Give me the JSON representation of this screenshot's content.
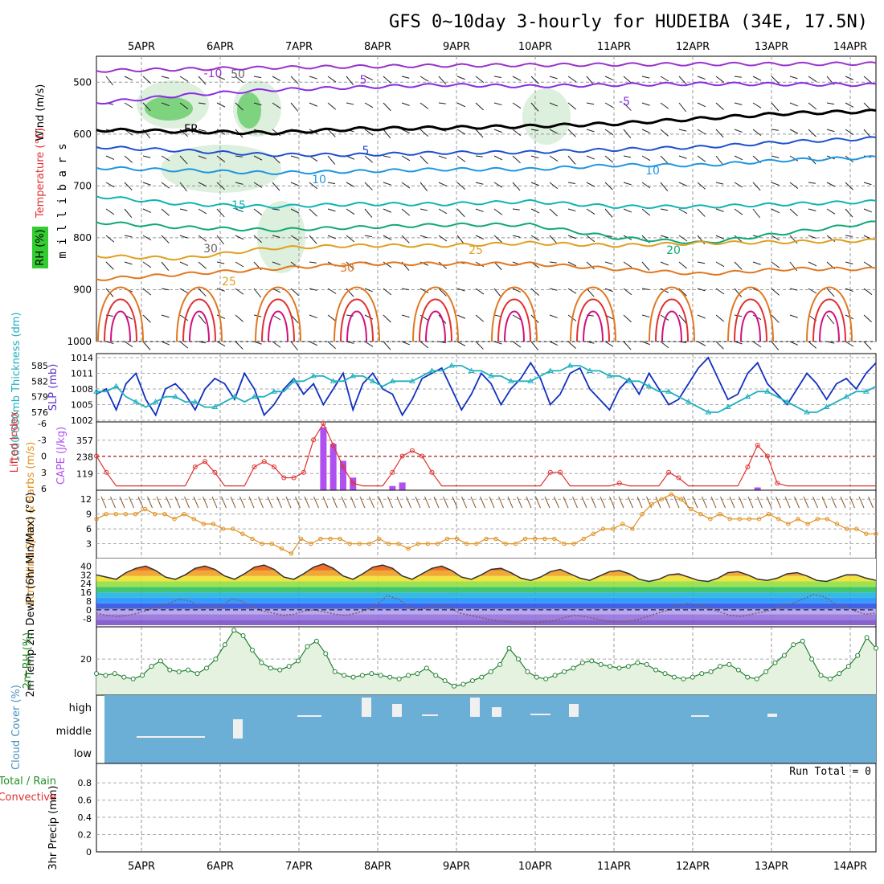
{
  "title": "GFS 0~10day 3-hourly for HUDEIBA (34E, 17.5N)",
  "dates": [
    "5APR",
    "6APR",
    "7APR",
    "8APR",
    "9APR",
    "10APR",
    "11APR",
    "12APR",
    "13APR",
    "14APR"
  ],
  "chart_data": [
    {
      "type": "line",
      "panel": "upper-air",
      "ylabel": "millibars",
      "ylabel_left": "Wind (m/s)",
      "ylabel_temp": "Temperature (°C)",
      "ylabel_rh": "RH (%)",
      "yticks": [
        500,
        600,
        700,
        800,
        900,
        1000
      ],
      "ylim": [
        450,
        1000
      ],
      "contour_labels": [
        "-10",
        "5",
        "FR",
        "5",
        "10",
        "15",
        "25",
        "30",
        "20",
        "-5",
        "10",
        "50",
        "30",
        "25"
      ],
      "isotherms": [
        {
          "name": "-10",
          "color": "#9a32cd",
          "level": [
            478,
            475,
            472,
            470,
            468,
            467,
            466,
            465,
            465,
            464
          ]
        },
        {
          "name": "-5",
          "color": "#8a2be2",
          "level": [
            540,
            525,
            515,
            510,
            505,
            508,
            505,
            503,
            504,
            505
          ]
        },
        {
          "name": "0",
          "color": "#000000",
          "level": [
            592,
            595,
            598,
            590,
            588,
            585,
            580,
            570,
            560,
            556
          ]
        },
        {
          "name": "5",
          "color": "#1e50d0",
          "level": [
            625,
            632,
            640,
            640,
            636,
            635,
            630,
            625,
            615,
            608
          ]
        },
        {
          "name": "10",
          "color": "#1e96e0",
          "level": [
            665,
            670,
            675,
            672,
            668,
            668,
            660,
            660,
            650,
            645
          ]
        },
        {
          "name": "15",
          "color": "#10b4b4",
          "level": [
            720,
            735,
            740,
            735,
            735,
            730,
            740,
            740,
            735,
            730
          ]
        },
        {
          "name": "20",
          "color": "#10a878",
          "level": [
            770,
            780,
            785,
            780,
            775,
            775,
            800,
            810,
            790,
            770
          ]
        },
        {
          "name": "25",
          "color": "#e0a020",
          "level": [
            835,
            840,
            820,
            815,
            815,
            810,
            815,
            810,
            808,
            805
          ]
        },
        {
          "name": "30",
          "color": "#e07820",
          "level": [
            880,
            870,
            860,
            850,
            850,
            850,
            860,
            870,
            860,
            860
          ]
        }
      ]
    },
    {
      "type": "line",
      "panel": "slp-thickness",
      "ylabel_left": "1000-500mb Thickness (dm)",
      "ylabel_right": "SLP (mb)",
      "yticks_left": [
        576,
        579,
        582,
        585
      ],
      "yticks_right": [
        1002,
        1005,
        1008,
        1011,
        1014
      ],
      "series": [
        {
          "name": "SLP (mb)",
          "color": "#1030c0",
          "values": [
            1007,
            1008,
            1004,
            1009,
            1011,
            1006,
            1003,
            1008,
            1009,
            1007,
            1004,
            1008,
            1010,
            1009,
            1006,
            1011,
            1008,
            1003,
            1005,
            1008,
            1010,
            1007,
            1009,
            1005,
            1008,
            1011,
            1004,
            1009,
            1011,
            1008,
            1007,
            1003,
            1006,
            1010,
            1011,
            1012,
            1008,
            1004,
            1007,
            1011,
            1009,
            1005,
            1008,
            1010,
            1013,
            1010,
            1005,
            1007,
            1011,
            1012,
            1008,
            1006,
            1004,
            1008,
            1010,
            1007,
            1011,
            1008,
            1005,
            1006,
            1009,
            1012,
            1014,
            1010,
            1006,
            1007,
            1011,
            1013,
            1009,
            1007,
            1005,
            1008,
            1011,
            1009,
            1006,
            1009,
            1010,
            1008,
            1011,
            1013
          ]
        },
        {
          "name": "1000-500mb Thickness (dm)",
          "color": "#20b0c0",
          "values": [
            580,
            580,
            581,
            579,
            578,
            577,
            578,
            579,
            579,
            578,
            578,
            577,
            577,
            578,
            579,
            578,
            579,
            579,
            580,
            580,
            582,
            582,
            583,
            583,
            582,
            582,
            583,
            583,
            582,
            581,
            582,
            582,
            582,
            583,
            584,
            584,
            585,
            585,
            584,
            584,
            583,
            583,
            582,
            582,
            582,
            583,
            584,
            584,
            585,
            585,
            584,
            584,
            583,
            583,
            582,
            582,
            581,
            580,
            580,
            579,
            578,
            577,
            576,
            576,
            577,
            578,
            579,
            580,
            580,
            579,
            578,
            577,
            576,
            576,
            577,
            578,
            579,
            580,
            580,
            581
          ]
        }
      ]
    },
    {
      "type": "bar",
      "panel": "lifted-cape",
      "ylabel_left": "Lifted Index",
      "ylabel_right": "CAPE (J/kg)",
      "yticks_left": [
        "-6",
        "-3",
        "0",
        "3",
        "6"
      ],
      "yticks_right": [
        119,
        238,
        357
      ],
      "series": [
        {
          "name": "Lifted Index",
          "color": "#e03030",
          "values": [
            0,
            3,
            6,
            6,
            6,
            6,
            6,
            6,
            6,
            6,
            2,
            1,
            3,
            6,
            6,
            6,
            2,
            1,
            2,
            4,
            4,
            3,
            -3,
            -6,
            -2,
            2,
            5,
            6,
            6,
            6,
            3,
            0,
            -1,
            0,
            3,
            6,
            6,
            6,
            6,
            6,
            6,
            6,
            6,
            6,
            6,
            6,
            3,
            3,
            6,
            6,
            6,
            6,
            6,
            5,
            6,
            6,
            6,
            6,
            3,
            4,
            6,
            6,
            6,
            6,
            6,
            6,
            2,
            -2,
            0,
            5,
            6,
            6,
            6,
            6,
            6,
            6,
            6,
            6,
            6,
            6
          ]
        },
        {
          "name": "CAPE (J/kg)",
          "color": "#b050f0",
          "values": [
            0,
            0,
            0,
            0,
            0,
            0,
            0,
            0,
            0,
            0,
            0,
            0,
            0,
            0,
            0,
            0,
            0,
            0,
            0,
            0,
            0,
            0,
            0,
            450,
            330,
            210,
            90,
            0,
            0,
            0,
            30,
            55,
            0,
            0,
            0,
            0,
            0,
            0,
            0,
            0,
            0,
            0,
            0,
            0,
            0,
            0,
            0,
            0,
            0,
            0,
            0,
            0,
            0,
            0,
            0,
            0,
            0,
            0,
            0,
            0,
            0,
            0,
            0,
            0,
            0,
            0,
            0,
            20,
            0,
            0,
            0,
            0,
            0,
            0,
            0,
            0,
            0,
            0,
            0,
            0
          ]
        }
      ]
    },
    {
      "type": "line",
      "panel": "10m-wind",
      "ylabel_left": "10m Wind Speed & Barbs (m/s)",
      "yticks": [
        3,
        6,
        9,
        12
      ],
      "series": [
        {
          "name": "10m Wind Speed",
          "color": "#e09020",
          "values": [
            8,
            9,
            9,
            9,
            9,
            10,
            9,
            9,
            8,
            9,
            8,
            7,
            7,
            6,
            6,
            5,
            4,
            3,
            3,
            2,
            1,
            4,
            3,
            4,
            4,
            4,
            3,
            3,
            3,
            4,
            3,
            3,
            2,
            3,
            3,
            3,
            4,
            4,
            3,
            3,
            4,
            4,
            3,
            3,
            4,
            4,
            4,
            4,
            3,
            3,
            4,
            5,
            6,
            6,
            7,
            6,
            9,
            11,
            12,
            13,
            12,
            10,
            9,
            8,
            9,
            8,
            8,
            8,
            8,
            9,
            8,
            7,
            8,
            7,
            8,
            8,
            7,
            6,
            6,
            5,
            5
          ]
        }
      ]
    },
    {
      "type": "area",
      "panel": "2m-temp",
      "ylabel_left": "2m Temp 2m DewPt (6hr Min/Max) (°C)",
      "yticks": [
        -8,
        0,
        8,
        16,
        24,
        32,
        40
      ],
      "series": [
        {
          "name": "2m Temp",
          "color": "#303030",
          "values": [
            32,
            30,
            28,
            34,
            38,
            40,
            36,
            30,
            28,
            32,
            38,
            40,
            37,
            31,
            28,
            33,
            39,
            41,
            37,
            30,
            28,
            33,
            39,
            42,
            38,
            31,
            28,
            33,
            39,
            41,
            38,
            31,
            28,
            33,
            38,
            40,
            36,
            30,
            28,
            32,
            37,
            38,
            34,
            29,
            27,
            30,
            35,
            37,
            33,
            29,
            27,
            31,
            35,
            36,
            33,
            28,
            26,
            28,
            32,
            33,
            30,
            27,
            26,
            29,
            34,
            35,
            32,
            28,
            27,
            29,
            33,
            34,
            31,
            27,
            26,
            29,
            32,
            32,
            29,
            27
          ]
        },
        {
          "name": "2m DewPt",
          "color": "#806060",
          "values": [
            -3,
            -5,
            -6,
            -5,
            -3,
            0,
            3,
            6,
            10,
            8,
            3,
            2,
            4,
            10,
            8,
            3,
            -1,
            -3,
            -5,
            -4,
            -1,
            0,
            -2,
            -4,
            -5,
            -3,
            0,
            5,
            13,
            10,
            3,
            0,
            2,
            5,
            2,
            -3,
            -5,
            -7,
            -9,
            -10,
            -11,
            -12,
            -12,
            -11,
            -10,
            -7,
            -5,
            -6,
            -8,
            -10,
            -11,
            -11,
            -9,
            -6,
            -3,
            0,
            4,
            6,
            4,
            1,
            -2,
            -5,
            -6,
            -4,
            -2,
            0,
            4,
            6,
            10,
            14,
            12,
            6,
            3,
            -1,
            -4,
            -3
          ]
        }
      ]
    },
    {
      "type": "area",
      "panel": "2m-rh",
      "ylabel_left": "2m RH (%)",
      "yticks": [
        20
      ],
      "series": [
        {
          "name": "2m RH",
          "color": "#208030",
          "values": [
            12,
            11,
            12,
            10,
            9,
            11,
            16,
            19,
            14,
            13,
            14,
            12,
            15,
            20,
            28,
            36,
            33,
            25,
            18,
            15,
            14,
            16,
            19,
            27,
            30,
            23,
            13,
            11,
            10,
            11,
            12,
            11,
            10,
            9,
            11,
            12,
            15,
            11,
            8,
            5,
            6,
            8,
            10,
            13,
            17,
            26,
            20,
            13,
            10,
            9,
            11,
            13,
            15,
            18,
            19,
            17,
            16,
            15,
            16,
            18,
            17,
            14,
            12,
            10,
            9,
            10,
            12,
            13,
            16,
            17,
            14,
            10,
            9,
            13,
            18,
            22,
            28,
            30,
            20,
            11,
            9,
            12,
            16,
            22,
            32,
            26
          ]
        }
      ]
    },
    {
      "type": "bar",
      "panel": "cloud-cover",
      "ylabel_left": "Cloud Cover (%)",
      "ytick_labels": [
        "high",
        "middle",
        "low"
      ],
      "high_layer": [
        0,
        0,
        0,
        0,
        0,
        0,
        0,
        0,
        0,
        0,
        0,
        0,
        0,
        0,
        0,
        0,
        0,
        0,
        0,
        0,
        0,
        0,
        0,
        0,
        0,
        0,
        0,
        0,
        0,
        0,
        0,
        0,
        0,
        0,
        0,
        0,
        0,
        0,
        0,
        0,
        0,
        0,
        0,
        0,
        30,
        0,
        0,
        0,
        0,
        0,
        0,
        0,
        0,
        0,
        0,
        0,
        0,
        0,
        0,
        0,
        0,
        0,
        0,
        0,
        0,
        0,
        0,
        0,
        0,
        0,
        0,
        0,
        0,
        0,
        0,
        0,
        0,
        0,
        0,
        0
      ],
      "middle_layer": [
        0,
        0,
        0,
        0,
        0,
        0,
        0,
        0,
        0,
        0,
        0,
        0,
        0,
        0,
        0,
        0,
        0,
        0,
        0,
        0,
        0,
        0,
        0,
        0,
        0,
        0,
        0,
        0,
        0,
        0,
        0,
        0,
        0,
        0,
        0,
        0,
        0,
        0,
        0,
        0,
        0,
        0,
        0,
        0,
        0,
        0,
        0,
        0,
        0,
        0,
        0,
        0,
        0,
        0,
        0,
        0,
        0,
        0,
        0,
        0,
        0,
        0,
        0,
        0,
        0,
        0,
        0,
        0,
        0,
        0,
        0,
        0,
        0,
        0,
        0,
        0,
        0,
        0,
        0,
        0
      ]
    },
    {
      "type": "bar",
      "panel": "precip",
      "ylabel_left": "3hr Precip (mm)",
      "legend_left": [
        "Total / Rain",
        "Convective"
      ],
      "yticks": [
        "0",
        "0.2",
        "0.4",
        "0.6",
        "0.8"
      ],
      "run_total_label": "Run Total = 0",
      "values": []
    }
  ]
}
